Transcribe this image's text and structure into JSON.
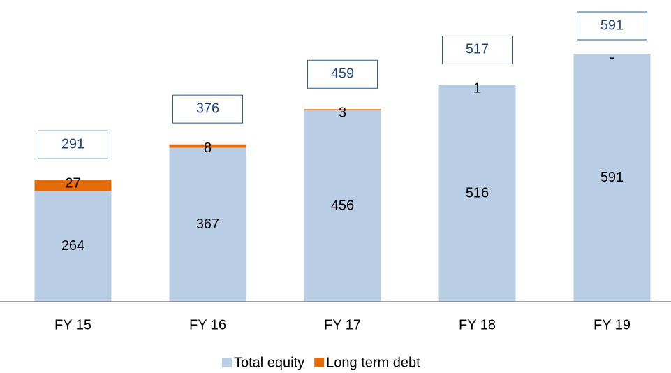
{
  "chart_data": {
    "type": "stacked-bar",
    "categories": [
      "FY 15",
      "FY 16",
      "FY 17",
      "FY 18",
      "FY 19"
    ],
    "series": [
      {
        "name": "Total equity",
        "color": "#b9cde5",
        "values": [
          264,
          367,
          456,
          516,
          591
        ]
      },
      {
        "name": "Long term debt",
        "color": "#e46c0a",
        "values": [
          27,
          8,
          3,
          1,
          0
        ],
        "value_labels": [
          "27",
          "8",
          "3",
          "1",
          "-"
        ]
      }
    ],
    "totals": [
      291,
      376,
      459,
      517,
      591
    ]
  }
}
